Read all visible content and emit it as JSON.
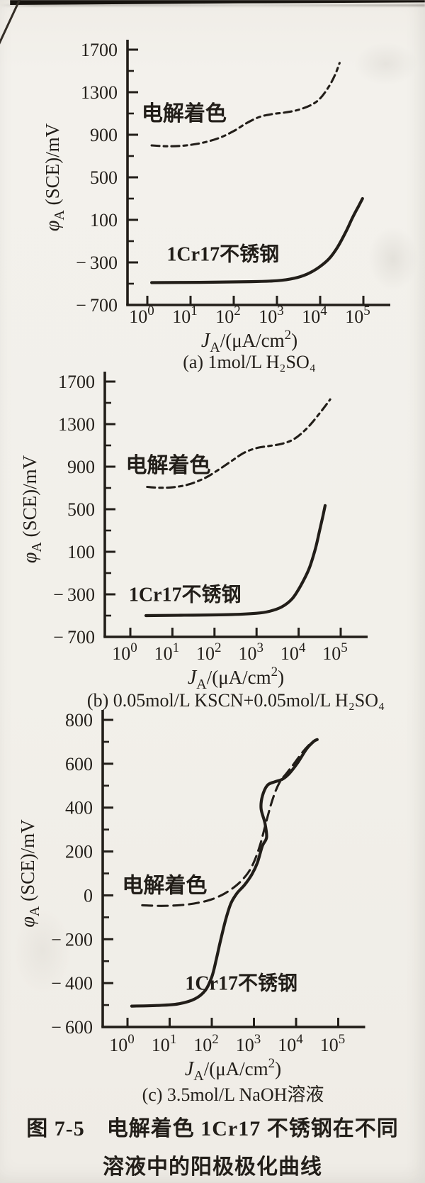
{
  "page": {
    "background_color": "#f2f0ea",
    "ink_color": "#221e19",
    "scan_edge_bar_color": "#17130f"
  },
  "chart_data": [
    {
      "id": "a",
      "type": "line",
      "caption": "(a) 1mol/L H₂SO₄",
      "xlabel_plain": "JA/(μA/cm²)",
      "ylabel_plain": "φA (SCE)/mV",
      "xlabel_parts": {
        "symbol": "J",
        "symbol_sub": "A",
        "mid": "/(μA/cm",
        "sup": "2",
        "end": ")"
      },
      "ylabel_parts": {
        "symbol": "φ",
        "symbol_sub": "A",
        "rest": " (SCE)/mV"
      },
      "x_scale": "log",
      "x_tick_base": "10",
      "x_tick_exponents": [
        0,
        1,
        2,
        3,
        4,
        5
      ],
      "y_ticks": [
        1700,
        1300,
        900,
        500,
        100,
        -300,
        -700
      ],
      "ylim": [
        -700,
        1700
      ],
      "grid": false,
      "series": [
        {
          "key": "electro-coloring",
          "name": "电解着色",
          "line": "dashed",
          "label_pos": {
            "logx": 0.85,
            "mv": 1100
          },
          "points": [
            [
              0.1,
              800
            ],
            [
              0.45,
              792
            ],
            [
              0.85,
              798
            ],
            [
              1.25,
              822
            ],
            [
              1.65,
              868
            ],
            [
              2.0,
              935
            ],
            [
              2.3,
              1010
            ],
            [
              2.6,
              1068
            ],
            [
              2.9,
              1095
            ],
            [
              3.2,
              1110
            ],
            [
              3.5,
              1135
            ],
            [
              3.8,
              1182
            ],
            [
              4.0,
              1242
            ],
            [
              4.2,
              1352
            ],
            [
              4.35,
              1468
            ],
            [
              4.45,
              1575
            ]
          ]
        },
        {
          "key": "steel-1cr17",
          "name": "1Cr17不锈钢",
          "line": "solid",
          "label_pos": {
            "logx": 1.75,
            "mv": -215
          },
          "points": [
            [
              0.1,
              -490
            ],
            [
              1.2,
              -487
            ],
            [
              2.4,
              -481
            ],
            [
              3.0,
              -472
            ],
            [
              3.4,
              -449
            ],
            [
              3.7,
              -409
            ],
            [
              3.95,
              -352
            ],
            [
              4.2,
              -268
            ],
            [
              4.4,
              -158
            ],
            [
              4.6,
              -8
            ],
            [
              4.75,
              122
            ],
            [
              4.88,
              222
            ],
            [
              4.98,
              300
            ]
          ]
        }
      ]
    },
    {
      "id": "b",
      "type": "line",
      "caption": "(b) 0.05mol/L KSCN+0.05mol/L H₂SO₄",
      "xlabel_plain": "JA/(μA/cm²)",
      "ylabel_plain": "φA (SCE)/mV",
      "xlabel_parts": {
        "symbol": "J",
        "symbol_sub": "A",
        "mid": "/(μA/cm",
        "sup": "2",
        "end": ")"
      },
      "ylabel_parts": {
        "symbol": "φ",
        "symbol_sub": "A",
        "rest": " (SCE)/mV"
      },
      "x_scale": "log",
      "x_tick_base": "10",
      "x_tick_exponents": [
        0,
        1,
        2,
        3,
        4,
        5
      ],
      "y_ticks": [
        1700,
        1300,
        900,
        500,
        100,
        -300,
        -700
      ],
      "ylim": [
        -700,
        1700
      ],
      "grid": false,
      "series": [
        {
          "key": "electro-coloring",
          "name": "电解着色",
          "line": "dashed",
          "label_pos": {
            "logx": 0.9,
            "mv": 915
          },
          "points": [
            [
              0.4,
              710
            ],
            [
              0.72,
              702
            ],
            [
              1.05,
              708
            ],
            [
              1.4,
              735
            ],
            [
              1.78,
              795
            ],
            [
              2.1,
              872
            ],
            [
              2.4,
              952
            ],
            [
              2.7,
              1030
            ],
            [
              3.0,
              1075
            ],
            [
              3.3,
              1095
            ],
            [
              3.6,
              1115
            ],
            [
              3.9,
              1162
            ],
            [
              4.2,
              1262
            ],
            [
              4.5,
              1402
            ],
            [
              4.75,
              1532
            ]
          ]
        },
        {
          "key": "steel-1cr17",
          "name": "1Cr17不锈钢",
          "line": "solid",
          "label_pos": {
            "logx": 1.3,
            "mv": -295
          },
          "points": [
            [
              0.37,
              -500
            ],
            [
              1.2,
              -497
            ],
            [
              2.4,
              -490
            ],
            [
              3.0,
              -478
            ],
            [
              3.3,
              -460
            ],
            [
              3.6,
              -418
            ],
            [
              3.85,
              -340
            ],
            [
              4.05,
              -218
            ],
            [
              4.25,
              -58
            ],
            [
              4.4,
              132
            ],
            [
              4.5,
              302
            ],
            [
              4.58,
              442
            ],
            [
              4.63,
              535
            ]
          ]
        }
      ]
    },
    {
      "id": "c",
      "type": "line",
      "caption": "(c) 3.5mol/L NaOH溶液",
      "xlabel_plain": "JA/(μA/cm²)",
      "ylabel_plain": "φA (SCE)/mV",
      "xlabel_parts": {
        "symbol": "J",
        "symbol_sub": "A",
        "mid": "/(μA/cm",
        "sup": "2",
        "end": ")"
      },
      "ylabel_parts": {
        "symbol": "φ",
        "symbol_sub": "A",
        "rest": " (SCE)/mV"
      },
      "x_scale": "log",
      "x_tick_base": "10",
      "x_tick_exponents": [
        0,
        1,
        2,
        3,
        4,
        5
      ],
      "y_ticks": [
        800,
        600,
        400,
        200,
        0,
        -200,
        -400,
        -600
      ],
      "ylim": [
        -600,
        800
      ],
      "grid": false,
      "series": [
        {
          "key": "electro-coloring",
          "name": "电解着色",
          "line": "dashed",
          "label_pos": {
            "logx": 0.88,
            "mv": 45
          },
          "points": [
            [
              0.35,
              -45
            ],
            [
              0.8,
              -48
            ],
            [
              1.3,
              -44
            ],
            [
              1.7,
              -33
            ],
            [
              2.0,
              -18
            ],
            [
              2.3,
              8
            ],
            [
              2.6,
              48
            ],
            [
              2.85,
              100
            ],
            [
              3.0,
              152
            ],
            [
              3.15,
              232
            ],
            [
              3.3,
              342
            ],
            [
              3.45,
              442
            ],
            [
              3.6,
              512
            ],
            [
              3.78,
              558
            ],
            [
              3.95,
              600
            ],
            [
              4.15,
              652
            ],
            [
              4.33,
              690
            ],
            [
              4.42,
              700
            ]
          ]
        },
        {
          "key": "steel-1cr17",
          "name": "1Cr17不锈钢",
          "line": "solid",
          "label_pos": {
            "logx": 2.7,
            "mv": -398
          },
          "points": [
            [
              0.1,
              -505
            ],
            [
              0.7,
              -502
            ],
            [
              1.2,
              -495
            ],
            [
              1.6,
              -472
            ],
            [
              1.85,
              -432
            ],
            [
              2.0,
              -372
            ],
            [
              2.1,
              -298
            ],
            [
              2.2,
              -212
            ],
            [
              2.32,
              -118
            ],
            [
              2.45,
              -38
            ],
            [
              2.6,
              10
            ],
            [
              2.78,
              48
            ],
            [
              2.95,
              95
            ],
            [
              3.08,
              148
            ],
            [
              3.2,
              225
            ],
            [
              3.3,
              265
            ],
            [
              3.26,
              330
            ],
            [
              3.17,
              395
            ],
            [
              3.2,
              452
            ],
            [
              3.32,
              502
            ],
            [
              3.5,
              518
            ],
            [
              3.68,
              530
            ],
            [
              3.85,
              558
            ],
            [
              4.05,
              608
            ],
            [
              4.25,
              668
            ],
            [
              4.42,
              702
            ],
            [
              4.5,
              710
            ]
          ]
        }
      ]
    }
  ],
  "figure_caption": {
    "line1": "图 7-5　电解着色 1Cr17 不锈钢在不同",
    "line2": "溶液中的阳极极化曲线"
  }
}
